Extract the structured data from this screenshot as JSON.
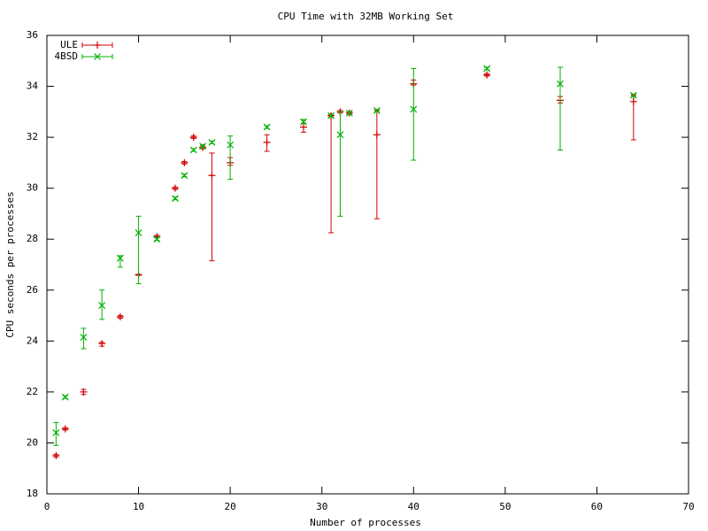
{
  "chart_data": {
    "type": "errorbar-scatter",
    "title": "CPU Time with 32MB Working Set",
    "xlabel": "Number of processes",
    "ylabel": "CPU seconds per processes",
    "xlim": [
      0,
      70
    ],
    "xticks": [
      0,
      10,
      20,
      30,
      40,
      50,
      60,
      70
    ],
    "ylim": [
      18,
      36
    ],
    "yticks": [
      18,
      20,
      22,
      24,
      26,
      28,
      30,
      32,
      34,
      36
    ],
    "legend": "top-left",
    "grid": false,
    "series": [
      {
        "name": "ULE",
        "color": "#d00000",
        "marker": "plus",
        "x": [
          1,
          2,
          4,
          6,
          8,
          10,
          12,
          14,
          15,
          16,
          17,
          18,
          20,
          24,
          28,
          31,
          32,
          33,
          36,
          40,
          48,
          56,
          64
        ],
        "values": [
          19.5,
          20.55,
          22.0,
          23.9,
          24.95,
          26.6,
          28.1,
          30.0,
          31.0,
          32.0,
          31.6,
          30.5,
          31.0,
          31.8,
          32.4,
          32.85,
          33.0,
          32.95,
          32.1,
          34.1,
          34.45,
          33.45,
          33.4
        ],
        "low": [
          19.45,
          20.5,
          21.9,
          23.8,
          24.9,
          26.58,
          28.05,
          29.95,
          30.95,
          31.95,
          31.55,
          27.15,
          30.9,
          31.45,
          32.2,
          28.25,
          32.95,
          32.9,
          28.8,
          34.05,
          34.4,
          33.35,
          31.9
        ],
        "high": [
          19.55,
          20.6,
          22.1,
          23.95,
          25.0,
          26.62,
          28.15,
          30.05,
          31.05,
          32.05,
          31.65,
          31.38,
          31.2,
          32.1,
          32.55,
          32.9,
          33.05,
          33.0,
          33.05,
          34.25,
          34.5,
          33.6,
          33.65
        ]
      },
      {
        "name": "4BSD",
        "color": "#00b000",
        "marker": "cross",
        "x": [
          1,
          2,
          4,
          6,
          8,
          10,
          12,
          14,
          15,
          16,
          17,
          18,
          20,
          24,
          28,
          31,
          32,
          33,
          36,
          40,
          48,
          56,
          64
        ],
        "values": [
          20.4,
          21.8,
          24.15,
          25.4,
          27.25,
          28.25,
          28.0,
          29.6,
          30.5,
          31.5,
          31.65,
          31.8,
          31.7,
          32.4,
          32.6,
          32.85,
          32.1,
          32.95,
          33.05,
          33.1,
          34.7,
          34.1,
          33.65
        ],
        "low": [
          19.9,
          21.75,
          23.7,
          24.85,
          26.9,
          26.25,
          27.95,
          29.55,
          30.45,
          31.45,
          31.6,
          31.75,
          30.35,
          32.35,
          32.55,
          32.8,
          28.9,
          32.9,
          33.0,
          31.1,
          34.65,
          31.5,
          33.6
        ],
        "high": [
          20.8,
          21.85,
          24.5,
          26.0,
          27.35,
          28.9,
          28.05,
          29.65,
          30.55,
          31.55,
          31.7,
          31.85,
          32.05,
          32.45,
          32.7,
          32.9,
          33.0,
          33.0,
          33.1,
          34.7,
          34.75,
          34.75,
          33.7
        ]
      }
    ]
  }
}
